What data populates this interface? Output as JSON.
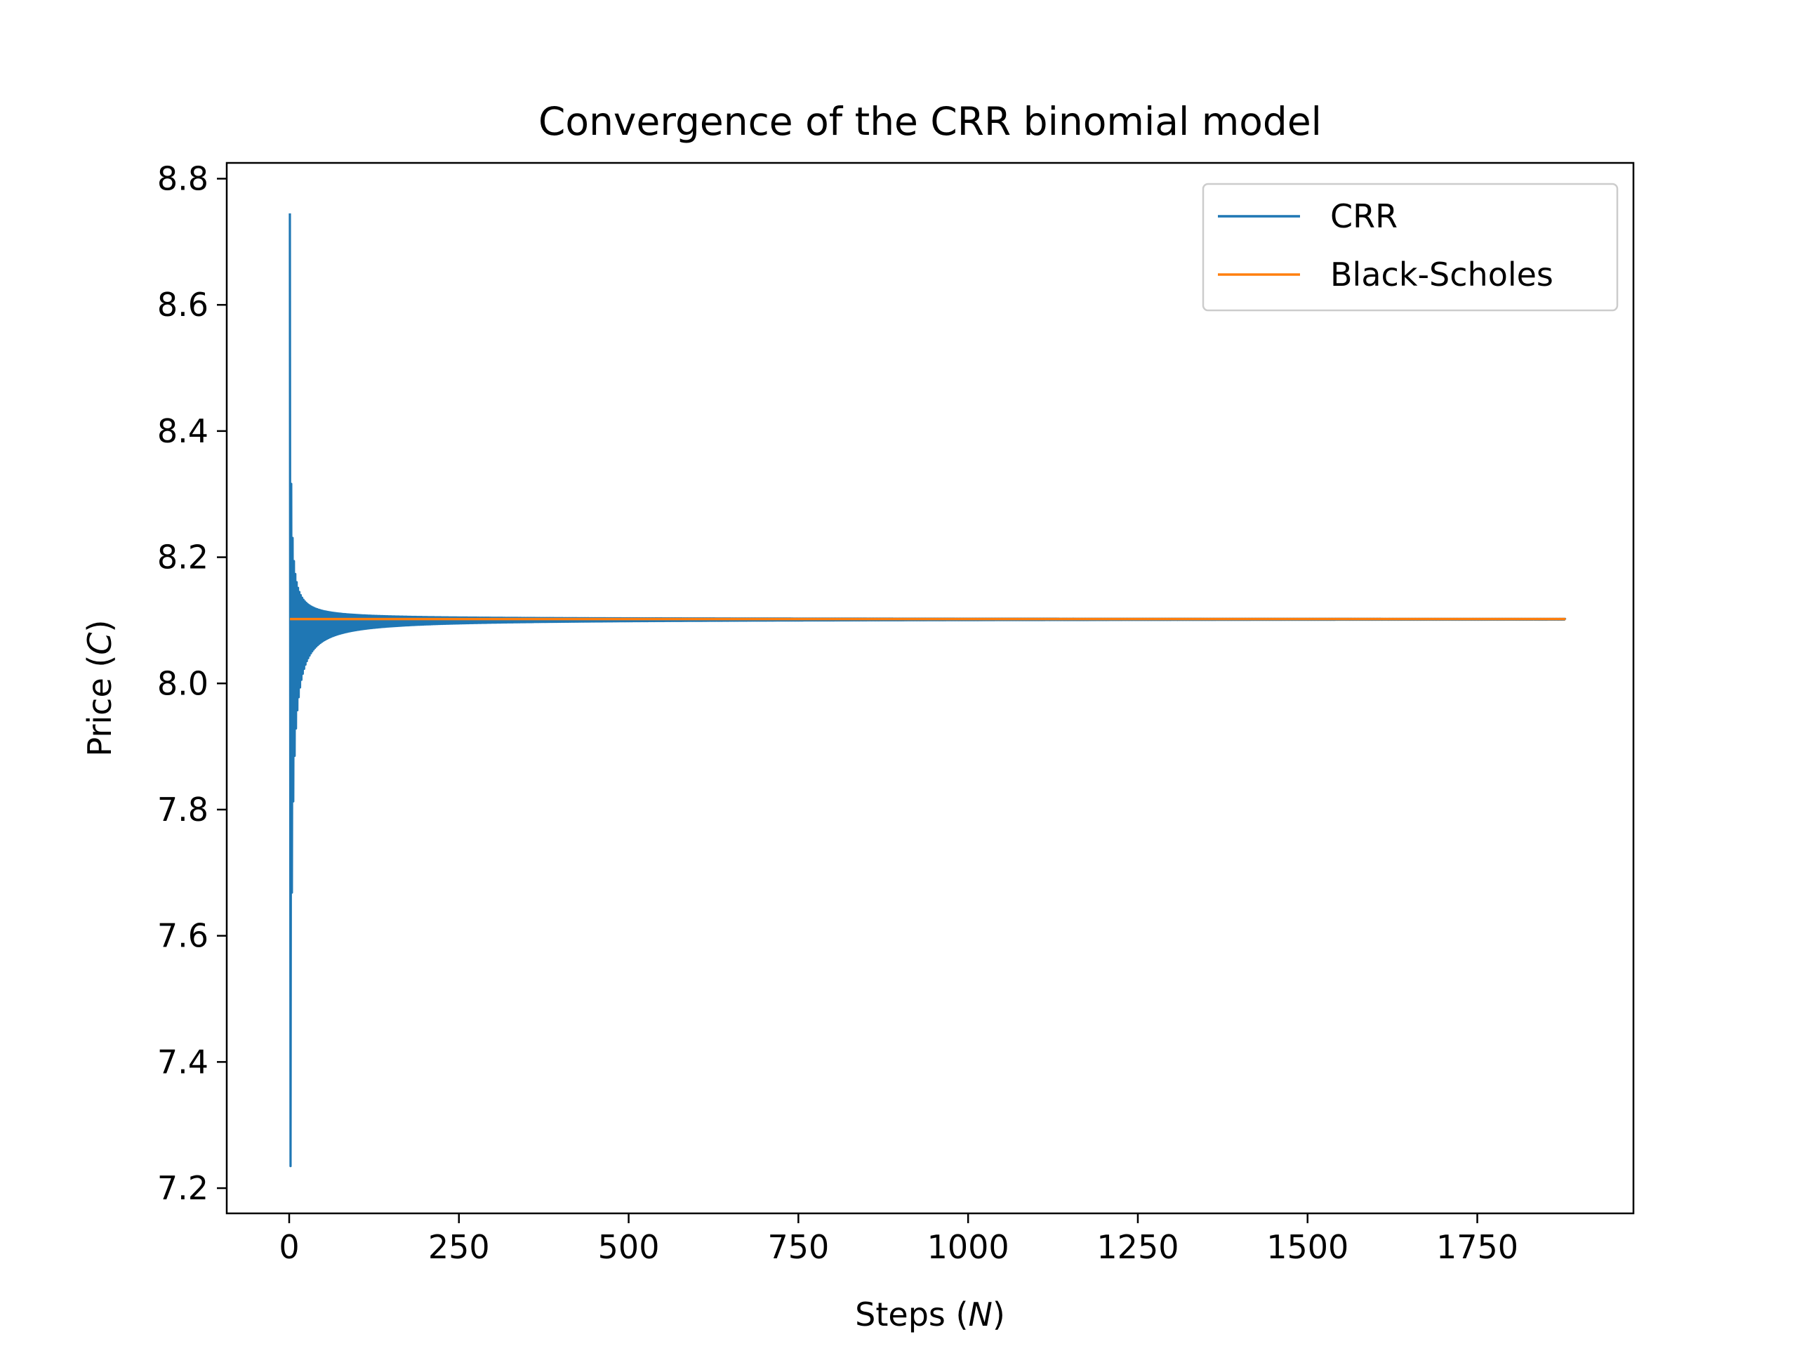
{
  "chart_data": {
    "type": "line",
    "title": "Convergence of the CRR binomial model",
    "xlabel": {
      "prefix": "Steps (",
      "var": "N",
      "suffix": ")"
    },
    "ylabel": {
      "prefix": "Price (",
      "var": "C",
      "suffix": ")"
    },
    "xlim": [
      -92,
      1980
    ],
    "ylim": [
      7.16,
      8.825
    ],
    "xticks": [
      0,
      250,
      500,
      750,
      1000,
      1250,
      1500,
      1750
    ],
    "xtick_labels": [
      "0",
      "250",
      "500",
      "750",
      "1000",
      "1250",
      "1500",
      "1750"
    ],
    "yticks": [
      7.2,
      7.4,
      7.6,
      7.8,
      8.0,
      8.2,
      8.4,
      8.6,
      8.8
    ],
    "ytick_labels": [
      "7.2",
      "7.4",
      "7.6",
      "7.8",
      "8.0",
      "8.2",
      "8.4",
      "8.6",
      "8.8"
    ],
    "grid": false,
    "legend_position": "top-right",
    "series": [
      {
        "name": "CRR",
        "color": "#1f77b4",
        "n_range": [
          1,
          1880
        ],
        "first_values": [
          8.745,
          7.235
        ],
        "limit": 8.102
      },
      {
        "name": "Black-Scholes",
        "color": "#ff7f0e",
        "x": [
          1,
          1880
        ],
        "values": [
          8.102,
          8.102
        ]
      }
    ]
  }
}
